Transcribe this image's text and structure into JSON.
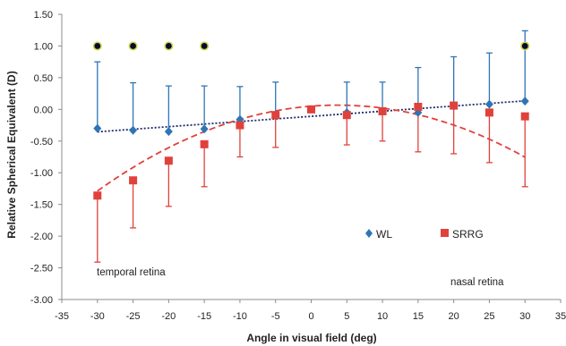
{
  "chart_data": {
    "type": "scatter",
    "xlabel": "Angle in visual field (deg)",
    "ylabel": "Relative Spherical Equivalent (D)",
    "xlim": [
      -35,
      35
    ],
    "ylim": [
      -3.0,
      1.5
    ],
    "x_ticks": [
      "-35",
      "-30",
      "-25",
      "-20",
      "-15",
      "-10",
      "-5",
      "0",
      "5",
      "10",
      "15",
      "20",
      "25",
      "30",
      "35"
    ],
    "y_ticks": [
      "-3.00",
      "-2.50",
      "-2.00",
      "-1.50",
      "-1.00",
      "-0.50",
      "0.00",
      "0.50",
      "1.00",
      "1.50"
    ],
    "grid": false,
    "legend_position": "lower-right-center",
    "series": [
      {
        "name": "WL",
        "color": "#2E75B6",
        "marker": "diamond",
        "error_direction": "up",
        "x": [
          -30,
          -25,
          -20,
          -15,
          -10,
          -5,
          5,
          10,
          15,
          20,
          25,
          30
        ],
        "y": [
          -0.3,
          -0.33,
          -0.35,
          -0.31,
          -0.16,
          -0.08,
          -0.05,
          -0.03,
          -0.05,
          0.05,
          0.08,
          0.13
        ],
        "error": [
          1.05,
          0.75,
          0.72,
          0.68,
          0.52,
          0.51,
          0.48,
          0.46,
          0.71,
          0.78,
          0.81,
          1.11
        ]
      },
      {
        "name": "SRRG",
        "color": "#E0413B",
        "marker": "square",
        "error_direction": "down",
        "x": [
          -30,
          -25,
          -20,
          -15,
          -10,
          -5,
          0,
          5,
          10,
          15,
          20,
          25,
          30
        ],
        "y": [
          -1.36,
          -1.12,
          -0.81,
          -0.55,
          -0.25,
          -0.09,
          0.0,
          -0.09,
          -0.03,
          0.04,
          0.06,
          -0.05,
          -0.11
        ],
        "error": [
          1.05,
          0.75,
          0.72,
          0.67,
          0.5,
          0.51,
          0.0,
          0.47,
          0.47,
          0.71,
          0.76,
          0.79,
          1.11
        ]
      }
    ],
    "trendlines": [
      {
        "series": "WL",
        "color": "#1F2A6B",
        "style": "dotted",
        "coefficients_quadratic": [
          0.0,
          0.00815,
          -0.11
        ]
      },
      {
        "series": "SRRG",
        "color": "#E0413B",
        "style": "dashed",
        "coefficients_quadratic": [
          -0.00119,
          0.0089,
          0.05
        ]
      }
    ],
    "significance_markers": {
      "x": [
        -30,
        -25,
        -20,
        -15,
        30
      ],
      "y": [
        1.0,
        1.0,
        1.0,
        1.0,
        1.0
      ],
      "fill": "#0B0B2E",
      "ring": "#C8D84A"
    },
    "annotations": {
      "left": "temporal retina",
      "right": "nasal retina"
    }
  }
}
